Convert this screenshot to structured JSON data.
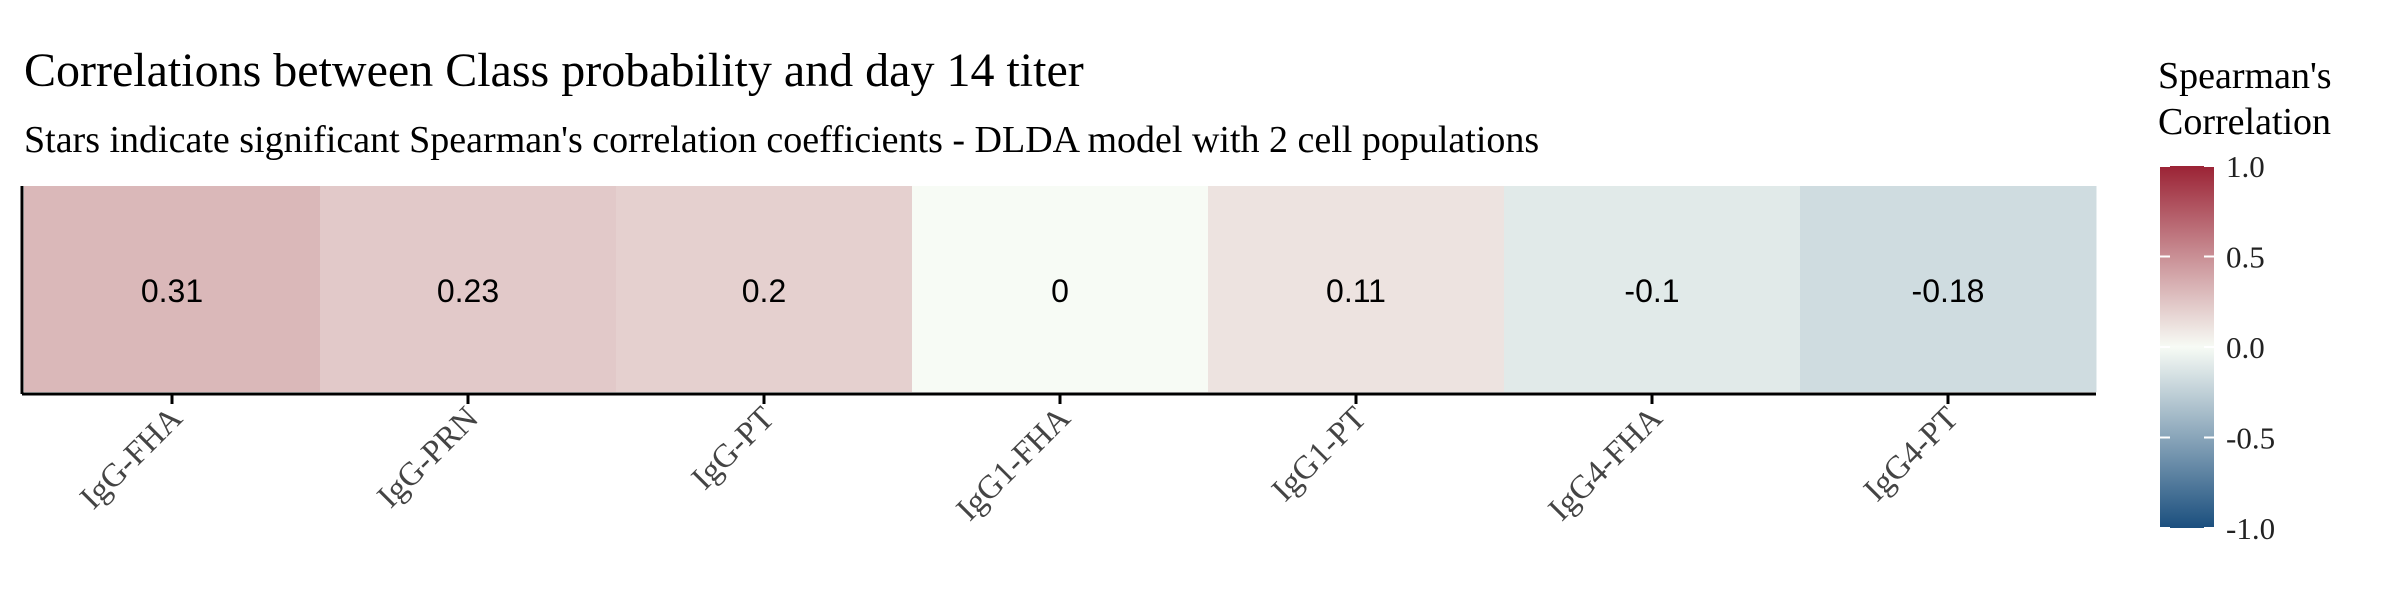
{
  "chart_data": {
    "type": "heatmap",
    "title": "Correlations between Class probability and day 14 titer",
    "subtitle": "Stars indicate significant Spearman's correlation coefficients - DLDA model with 2 cell populations",
    "xlabel": "",
    "ylabel": "",
    "categories": [
      "IgG-FHA",
      "IgG-PRN",
      "IgG-PT",
      "IgG1-FHA",
      "IgG1-PT",
      "IgG4-FHA",
      "IgG4-PT"
    ],
    "values": [
      0.31,
      0.23,
      0.2,
      0,
      0.11,
      -0.1,
      -0.18
    ],
    "value_labels": [
      "0.31",
      "0.23",
      "0.2",
      "0",
      "0.11",
      "-0.1",
      "-0.18"
    ],
    "legend": {
      "title_lines": [
        "Spearman's",
        "Correlation"
      ],
      "placement": "right",
      "range": [
        -1.0,
        1.0
      ],
      "ticks": [
        1.0,
        0.5,
        0.0,
        -0.5,
        -1.0
      ],
      "tick_labels": [
        "1.0",
        "0.5",
        "0.0",
        "-0.5",
        "-1.0"
      ],
      "low_color": "#1b4f7e",
      "mid_color": "#f7fbf5",
      "high_color": "#9b2335"
    },
    "grid": false
  }
}
